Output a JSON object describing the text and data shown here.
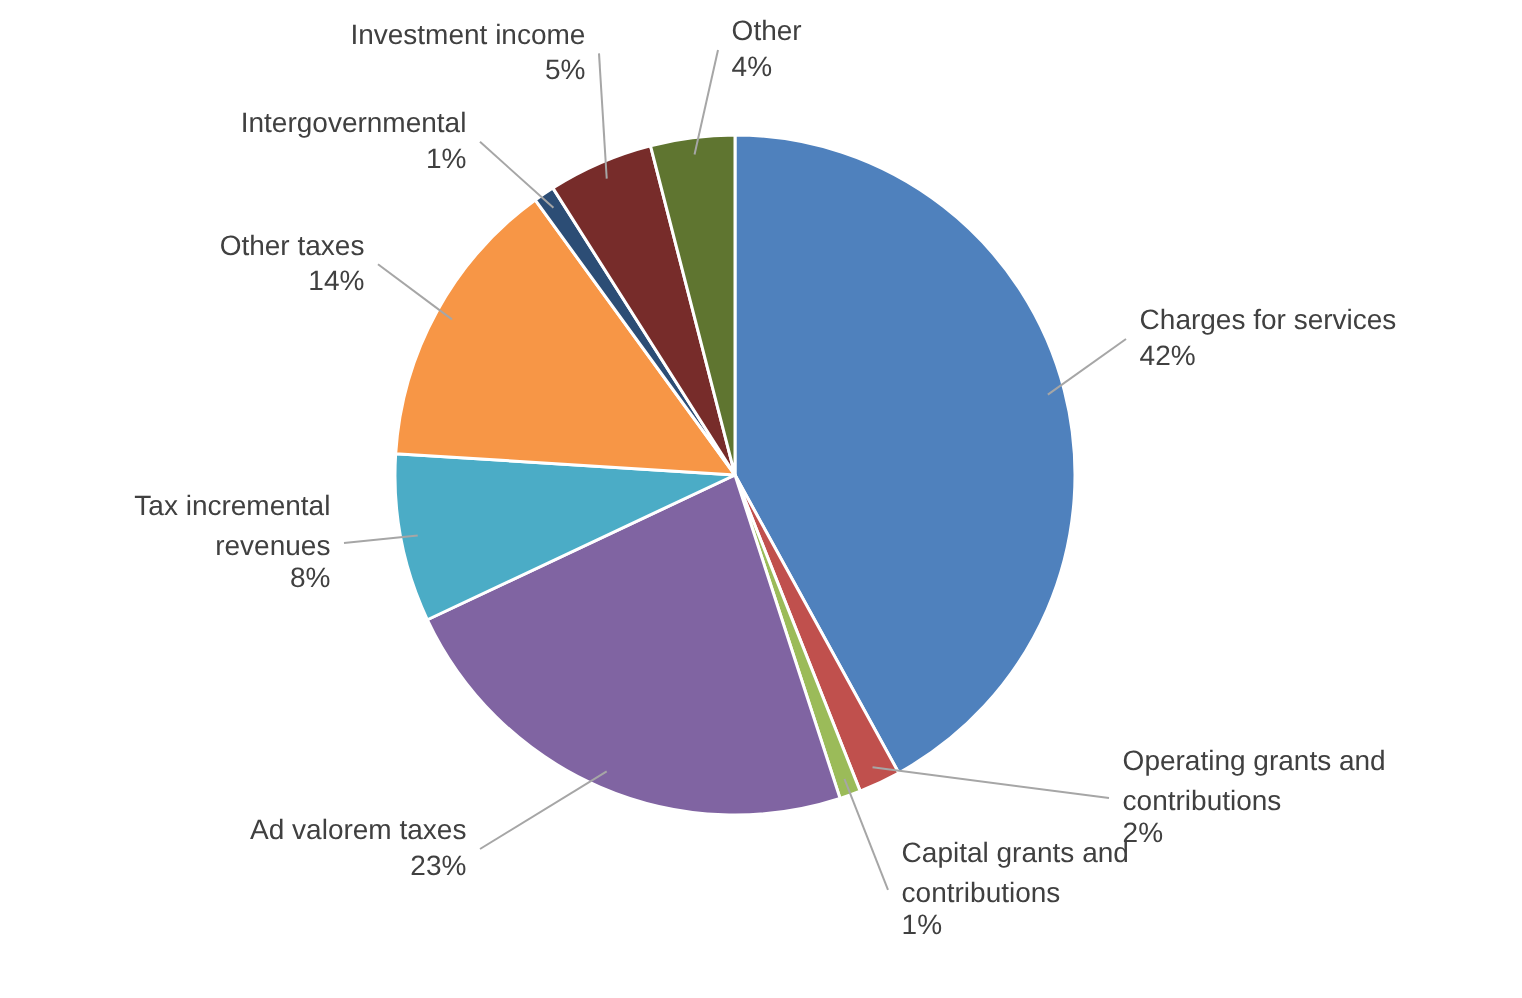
{
  "chart_data": {
    "type": "pie",
    "categories": [
      "Charges for services",
      "Operating grants and contributions",
      "Capital grants and contributions",
      "Ad valorem taxes",
      "Tax incremental revenues",
      "Other taxes",
      "Intergovernmental",
      "Investment income",
      "Other"
    ],
    "values": [
      42,
      2,
      1,
      23,
      8,
      14,
      1,
      5,
      4
    ],
    "colors": [
      "#4f81bd",
      "#c0504d",
      "#9bbb59",
      "#8064a2",
      "#4bacc6",
      "#f79646",
      "#2c4d75",
      "#772c2a",
      "#5f7530"
    ],
    "value_labels": [
      "42%",
      "2%",
      "1%",
      "23%",
      "8%",
      "14%",
      "1%",
      "5%",
      "4%"
    ]
  }
}
